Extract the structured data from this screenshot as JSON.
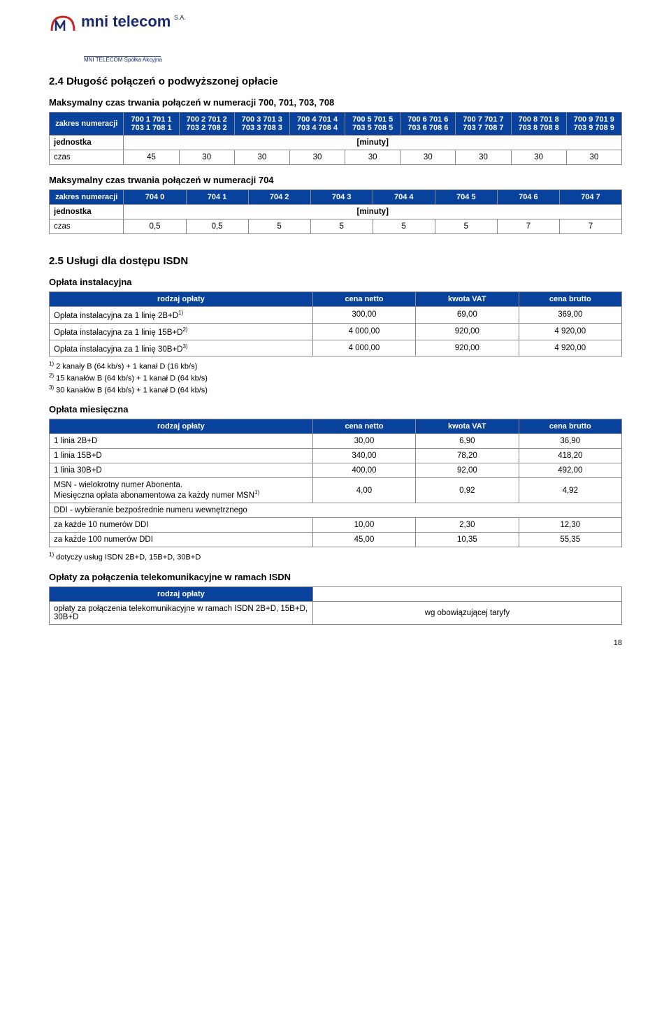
{
  "logo": {
    "brand": "mni telecom",
    "tagline": "MNI TELECOM Spółka Akcyjna",
    "sa": "S.A."
  },
  "section24": {
    "title": "2.4    Długość połączeń o podwyższonej opłacie",
    "heading1": "Maksymalny czas trwania połączeń w numeracji 700, 701, 703, 708",
    "col0": "zakres\nnumeracji",
    "cols": [
      [
        "700 1",
        "701 1",
        "703 1",
        "708 1"
      ],
      [
        "700 2",
        "701 2",
        "703 2",
        "708 2"
      ],
      [
        "700 3",
        "701 3",
        "703 3",
        "708 3"
      ],
      [
        "700 4",
        "701 4",
        "703 4",
        "708 4"
      ],
      [
        "700 5",
        "701 5",
        "703 5",
        "708 5"
      ],
      [
        "700 6",
        "701 6",
        "703 6",
        "708 6"
      ],
      [
        "700 7",
        "701 7",
        "703 7",
        "708 7"
      ],
      [
        "700 8",
        "701 8",
        "703 8",
        "708 8"
      ],
      [
        "700 9",
        "701 9",
        "703 9",
        "708 9"
      ]
    ],
    "unit_label": "jednostka",
    "unit": "[minuty]",
    "row_label": "czas",
    "row_values": [
      "45",
      "30",
      "30",
      "30",
      "30",
      "30",
      "30",
      "30",
      "30"
    ],
    "heading2": "Maksymalny czas trwania połączeń w numeracji 704",
    "col0b": "zakres\nnumeracji",
    "colsb": [
      "704 0",
      "704 1",
      "704 2",
      "704 3",
      "704 4",
      "704 5",
      "704 6",
      "704 7"
    ],
    "unit_labelb": "jednostka",
    "unitb": "[minuty]",
    "row_labelb": "czas",
    "row_valuesb": [
      "0,5",
      "0,5",
      "5",
      "5",
      "5",
      "5",
      "7",
      "7"
    ]
  },
  "section25": {
    "title": "2.5    Usługi dla dostępu ISDN",
    "install": {
      "heading": "Opłata instalacyjna",
      "headers": [
        "rodzaj opłaty",
        "cena netto",
        "kwota VAT",
        "cena brutto"
      ],
      "rows": [
        {
          "label": "Opłata instalacyjna za 1 linię 2B+D",
          "sup": "1)",
          "net": "300,00",
          "vat": "69,00",
          "gross": "369,00"
        },
        {
          "label": "Opłata instalacyjna za 1 linię 15B+D",
          "sup": "2)",
          "net": "4 000,00",
          "vat": "920,00",
          "gross": "4 920,00"
        },
        {
          "label": "Opłata instalacyjna za 1 linię 30B+D",
          "sup": "3)",
          "net": "4 000,00",
          "vat": "920,00",
          "gross": "4 920,00"
        }
      ],
      "notes": [
        {
          "sup": "1)",
          "text": " 2 kanały B (64 kb/s) + 1 kanał D (16 kb/s)"
        },
        {
          "sup": "2)",
          "text": " 15 kanałów B (64 kb/s) + 1 kanał D (64 kb/s)"
        },
        {
          "sup": "3)",
          "text": " 30 kanałów B (64 kb/s) + 1 kanał D (64 kb/s)"
        }
      ]
    },
    "monthly": {
      "heading": "Opłata miesięczna",
      "headers": [
        "rodzaj opłaty",
        "cena netto",
        "kwota VAT",
        "cena brutto"
      ],
      "rows": [
        {
          "label": "1 linia 2B+D",
          "net": "30,00",
          "vat": "6,90",
          "gross": "36,90"
        },
        {
          "label": "1 linia 15B+D",
          "net": "340,00",
          "vat": "78,20",
          "gross": "418,20"
        },
        {
          "label": "1 linia 30B+D",
          "net": "400,00",
          "vat": "92,00",
          "gross": "492,00"
        },
        {
          "label": "MSN - wielokrotny numer Abonenta.\nMiesięczna opłata abonamentowa za każdy numer MSN",
          "sup": "1)",
          "net": "4,00",
          "vat": "0,92",
          "gross": "4,92"
        },
        {
          "label": "DDI - wybieranie bezpośrednie numeru wewnętrznego",
          "span": true
        },
        {
          "label": "za każde 10 numerów DDI",
          "net": "10,00",
          "vat": "2,30",
          "gross": "12,30"
        },
        {
          "label": "za każde 100 numerów DDI",
          "net": "45,00",
          "vat": "10,35",
          "gross": "55,35"
        }
      ],
      "notes": [
        {
          "sup": "1)",
          "text": " dotyczy usług ISDN 2B+D, 15B+D, 30B+D"
        }
      ]
    },
    "calls": {
      "heading": "Opłaty za połączenia telekomunikacyjne w ramach ISDN",
      "header": "rodzaj opłaty",
      "row_label": "opłaty za połączenia telekomunikacyjne w ramach ISDN 2B+D, 15B+D, 30B+D",
      "row_value": "wg obowiązującej taryfy"
    }
  },
  "page_number": "18",
  "colors": {
    "header_bg": "#09429c",
    "header_fg": "#ffffff",
    "border": "#8a8a8a",
    "logo": "#1b2a6b",
    "logo_accent": "#c62828"
  }
}
